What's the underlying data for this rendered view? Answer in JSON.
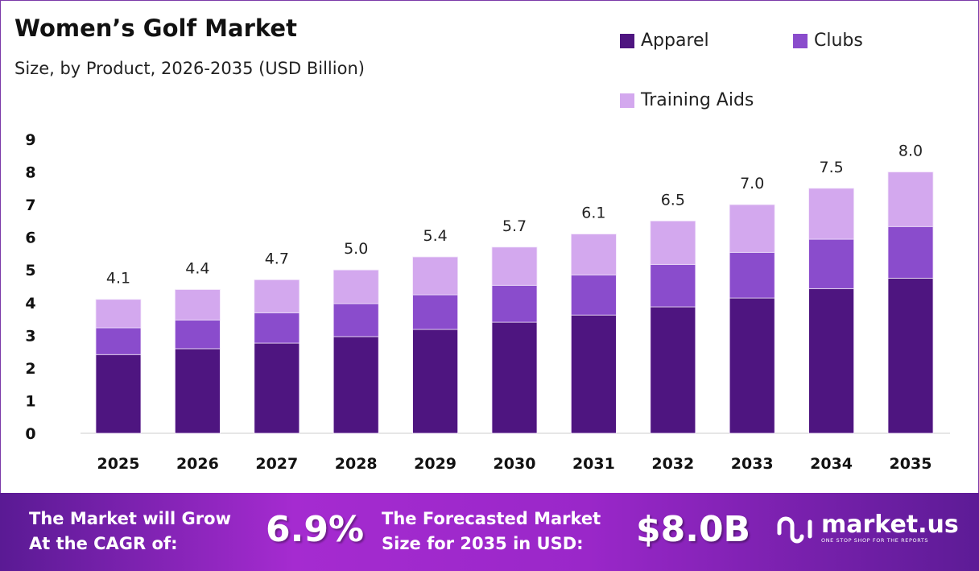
{
  "colors": {
    "apparel": "#4e1580",
    "clubs": "#8a4ccc",
    "training_aids": "#d3a8ee",
    "axis": "#cccccc"
  },
  "chart_data": {
    "type": "bar",
    "stacked": true,
    "title": "Women’s Golf Market",
    "subtitle": "Size, by Product, 2026-2035 (USD Billion)",
    "categories": [
      "2025",
      "2026",
      "2027",
      "2028",
      "2029",
      "2030",
      "2031",
      "2032",
      "2033",
      "2034",
      "2035"
    ],
    "series": [
      {
        "name": "Apparel",
        "values": [
          2.41,
          2.59,
          2.76,
          2.96,
          3.18,
          3.4,
          3.62,
          3.87,
          4.14,
          4.43,
          4.75
        ]
      },
      {
        "name": "Clubs",
        "values": [
          0.82,
          0.88,
          0.93,
          1.01,
          1.06,
          1.13,
          1.23,
          1.3,
          1.4,
          1.51,
          1.58
        ]
      },
      {
        "name": "Training Aids",
        "values": [
          0.87,
          0.93,
          1.01,
          1.03,
          1.16,
          1.17,
          1.25,
          1.33,
          1.46,
          1.56,
          1.67
        ]
      }
    ],
    "totals": [
      4.1,
      4.4,
      4.7,
      5.0,
      5.4,
      5.7,
      6.1,
      6.5,
      7.0,
      7.5,
      8.0
    ],
    "total_labels": [
      "4.1",
      "4.4",
      "4.7",
      "5.0",
      "5.4",
      "5.7",
      "6.1",
      "6.5",
      "7.0",
      "7.5",
      "8.0"
    ],
    "yticks": [
      "0",
      "1",
      "2",
      "3",
      "4",
      "5",
      "6",
      "7",
      "8",
      "9"
    ],
    "ylim": [
      0,
      9
    ],
    "grid": false,
    "legend_position": "top-right",
    "xlabel": "",
    "ylabel": ""
  },
  "footer": {
    "cagr_text_line1": "The Market will Grow",
    "cagr_text_line2": "At the CAGR of:",
    "cagr_value": "6.9%",
    "forecast_text_line1": "The Forecasted Market",
    "forecast_text_line2": "Size for 2035 in USD:",
    "forecast_value": "$8.0B",
    "logo_name": "market.us",
    "logo_tagline": "ONE STOP SHOP FOR THE REPORTS"
  }
}
